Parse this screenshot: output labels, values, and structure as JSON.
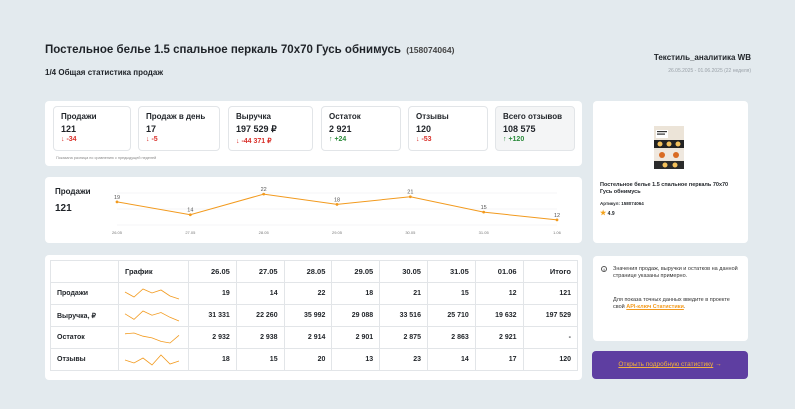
{
  "header": {
    "title": "Постельное белье 1.5 спальное перкаль 70х70 Гусь обнимусь",
    "sku": "(158074064)",
    "subtitle": "1/4 Общая статистика продаж",
    "brand": "Текстиль_аналитика WB",
    "period": "26.05.2025 - 01.06.2025 (22 неделя)"
  },
  "stats": [
    {
      "label": "Продажи",
      "value": "121",
      "delta": "↓ -34",
      "trend": "neg"
    },
    {
      "label": "Продаж в день",
      "value": "17",
      "delta": "↓ -5",
      "trend": "neg"
    },
    {
      "label": "Выручка",
      "value": "197 529 ₽",
      "delta": "↓ -44 371 ₽",
      "trend": "neg"
    },
    {
      "label": "Остаток",
      "value": "2 921",
      "delta": "↑ +24",
      "trend": "pos"
    },
    {
      "label": "Отзывы",
      "value": "120",
      "delta": "↓ -53",
      "trend": "neg"
    },
    {
      "label": "Всего отзывов",
      "value": "108 575",
      "delta": "↑ +120",
      "trend": "pos"
    }
  ],
  "stats_note": "Показана разница по сравнению с предыдущей неделей",
  "chart_data": {
    "type": "line",
    "title": "Продажи",
    "total": "121",
    "x": [
      "26.05",
      "27.05",
      "28.05",
      "29.05",
      "30.05",
      "31.05",
      "1.06"
    ],
    "series": [
      {
        "values": [
          19,
          14,
          22,
          18,
          21,
          15,
          12
        ]
      }
    ],
    "color": "#f29a1e",
    "grid": true
  },
  "table": {
    "header_graph": "График",
    "dates": [
      "26.05",
      "27.05",
      "28.05",
      "29.05",
      "30.05",
      "31.05",
      "01.06"
    ],
    "header_total": "Итого",
    "rows": [
      {
        "label": "Продажи",
        "values": [
          "19",
          "14",
          "22",
          "18",
          "21",
          "15",
          "12"
        ],
        "total": "121",
        "spark": [
          19,
          14,
          22,
          18,
          21,
          15,
          12
        ]
      },
      {
        "label": "Выручка, ₽",
        "values": [
          "31 331",
          "22 260",
          "35 992",
          "29 088",
          "33 516",
          "25 710",
          "19 632"
        ],
        "total": "197 529",
        "spark": [
          31331,
          22260,
          35992,
          29088,
          33516,
          25710,
          19632
        ]
      },
      {
        "label": "Остаток",
        "values": [
          "2 932",
          "2 938",
          "2 914",
          "2 901",
          "2 875",
          "2 863",
          "2 921"
        ],
        "total": "-",
        "spark": [
          2932,
          2938,
          2914,
          2901,
          2875,
          2863,
          2921
        ]
      },
      {
        "label": "Отзывы",
        "values": [
          "18",
          "15",
          "20",
          "13",
          "23",
          "14",
          "17"
        ],
        "total": "120",
        "spark": [
          18,
          15,
          20,
          13,
          23,
          14,
          17
        ]
      }
    ]
  },
  "product": {
    "name": "Постельное белье 1.5 спальное перкаль 70х70 Гусь обнимусь",
    "article": "Артикул: 158074064",
    "rating": "4.9"
  },
  "info": {
    "text1": "Значения продаж, выручки и остатков на данной странице указаны примерно.",
    "text2": "Для показа точных данных введите в проекте свой",
    "link": "API-ключ Статистики",
    "after_link": "."
  },
  "cta": {
    "label": "Открыть подробную статистику",
    "arrow": "→"
  },
  "colors": {
    "accent": "#f29a1e",
    "cta_bg": "#5e3ea1",
    "negative": "#d9302a",
    "positive": "#2a8a3a"
  }
}
